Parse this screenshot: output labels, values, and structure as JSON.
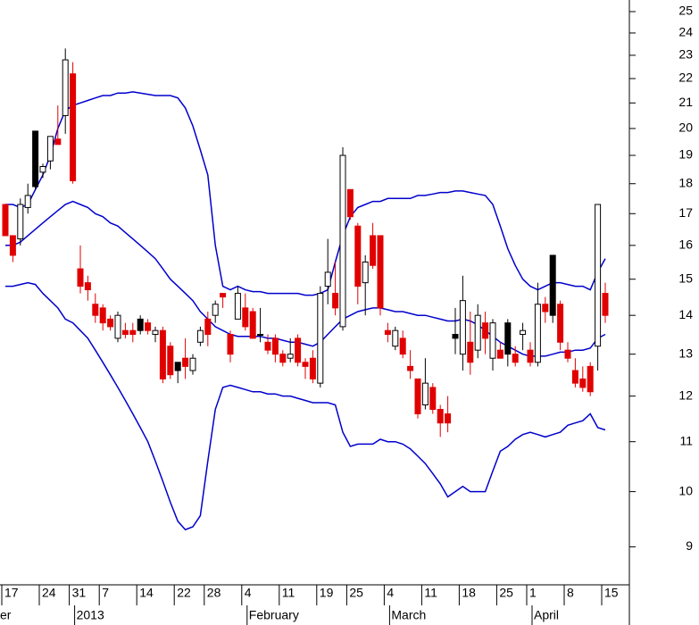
{
  "chart_data": {
    "type": "candlestick",
    "log_scale": true,
    "categories": [
      "17",
      null,
      null,
      null,
      null,
      "24",
      null,
      null,
      null,
      "31",
      null,
      null,
      null,
      "7",
      null,
      null,
      null,
      null,
      "14",
      null,
      null,
      null,
      null,
      "22",
      null,
      null,
      null,
      "28",
      null,
      null,
      null,
      null,
      "4",
      null,
      null,
      null,
      null,
      "11",
      null,
      null,
      null,
      null,
      "19",
      null,
      null,
      null,
      "25",
      null,
      null,
      null,
      null,
      "4",
      null,
      null,
      null,
      null,
      "11",
      null,
      null,
      null,
      null,
      "18",
      null,
      null,
      null,
      null,
      "25",
      null,
      null,
      null,
      "1",
      null,
      null,
      null,
      null,
      "8",
      null,
      null,
      null,
      null,
      "15"
    ],
    "months": [
      "er",
      null,
      null,
      null,
      null,
      null,
      null,
      null,
      null,
      "2013",
      null,
      null,
      null,
      null,
      null,
      null,
      null,
      null,
      null,
      null,
      null,
      null,
      null,
      null,
      null,
      null,
      null,
      null,
      null,
      null,
      null,
      null,
      "February",
      null,
      null,
      null,
      null,
      null,
      null,
      null,
      null,
      null,
      null,
      null,
      null,
      null,
      null,
      null,
      null,
      null,
      null,
      "March",
      null,
      null,
      null,
      null,
      null,
      null,
      null,
      null,
      null,
      null,
      null,
      null,
      null,
      null,
      null,
      null,
      null,
      null,
      "April",
      null,
      null,
      null,
      null,
      null,
      null,
      null,
      null,
      null,
      null
    ],
    "open": [
      17.3,
      16.3,
      16.2,
      17.2,
      17.9,
      18.4,
      18.8,
      19.6,
      20.5,
      22.2,
      15.3,
      14.9,
      14.3,
      14.2,
      13.9,
      13.4,
      13.6,
      13.6,
      13.6,
      13.8,
      13.5,
      13.6,
      13.2,
      12.6,
      12.9,
      12.6,
      13.3,
      13.9,
      14.0,
      14.6,
      13.5,
      13.9,
      14.2,
      14.1,
      13.5,
      13.3,
      13.4,
      13.0,
      12.9,
      13.4,
      12.8,
      12.9,
      12.3,
      14.8,
      14.6,
      13.7,
      17.8,
      16.6,
      14.9,
      16.3,
      16.3,
      13.6,
      13.2,
      13.4,
      12.7,
      12.4,
      11.8,
      12.2,
      11.7,
      11.6,
      13.4,
      13.0,
      13.3,
      13.1,
      13.8,
      12.9,
      13.1,
      13.0,
      13.0,
      13.5,
      13.1,
      12.8,
      14.3,
      14.0,
      14.3,
      13.1,
      12.6,
      12.4,
      12.7,
      13.2,
      14.6
    ],
    "high": [
      17.3,
      16.3,
      17.5,
      18.0,
      19.9,
      18.7,
      19.7,
      20.9,
      23.3,
      22.7,
      16.0,
      15.1,
      14.6,
      14.3,
      14.0,
      14.1,
      13.8,
      13.8,
      14.0,
      13.9,
      13.7,
      13.7,
      13.3,
      12.8,
      13.4,
      13.0,
      13.7,
      14.1,
      14.4,
      14.6,
      13.6,
      14.8,
      14.6,
      14.2,
      14.2,
      13.5,
      13.5,
      13.1,
      13.4,
      13.5,
      12.9,
      13.1,
      14.8,
      16.2,
      15.5,
      19.3,
      17.8,
      16.7,
      15.7,
      16.7,
      16.3,
      13.8,
      13.7,
      13.6,
      13.1,
      12.4,
      12.9,
      12.3,
      11.8,
      12.0,
      14.2,
      15.1,
      14.1,
      14.3,
      14.1,
      13.9,
      13.3,
      13.9,
      13.2,
      13.8,
      13.3,
      14.9,
      14.5,
      15.7,
      14.4,
      13.3,
      12.9,
      12.7,
      12.8,
      17.3,
      14.9
    ],
    "low": [
      16.3,
      15.5,
      16.0,
      17.0,
      17.8,
      18.2,
      18.5,
      19.4,
      19.8,
      18.0,
      14.6,
      14.4,
      13.8,
      13.6,
      13.6,
      13.3,
      13.4,
      13.3,
      13.5,
      13.5,
      13.3,
      12.3,
      12.4,
      12.3,
      12.4,
      12.5,
      13.2,
      13.2,
      13.8,
      14.2,
      12.8,
      13.9,
      13.6,
      13.4,
      13.3,
      13.0,
      12.8,
      12.7,
      12.8,
      12.7,
      12.4,
      12.3,
      12.2,
      14.3,
      14.0,
      13.6,
      16.8,
      14.3,
      14.0,
      15.3,
      14.0,
      13.3,
      13.1,
      12.9,
      12.4,
      11.5,
      11.7,
      11.6,
      11.1,
      11.2,
      13.0,
      12.6,
      12.5,
      12.9,
      13.0,
      12.6,
      12.9,
      12.7,
      12.7,
      13.1,
      12.7,
      12.7,
      13.8,
      13.8,
      13.1,
      12.8,
      12.2,
      12.1,
      12.0,
      12.6,
      13.8
    ],
    "close": [
      16.3,
      15.7,
      17.3,
      17.6,
      19.9,
      18.6,
      19.7,
      19.4,
      22.8,
      18.1,
      14.8,
      14.7,
      14.0,
      13.8,
      13.7,
      14.0,
      13.5,
      13.5,
      13.9,
      13.6,
      13.6,
      12.4,
      12.5,
      12.8,
      12.7,
      12.9,
      13.6,
      13.5,
      14.3,
      14.5,
      13.0,
      14.6,
      13.7,
      13.4,
      13.5,
      13.1,
      13.0,
      12.8,
      13.0,
      12.8,
      12.7,
      12.4,
      14.6,
      15.2,
      14.2,
      19.0,
      16.9,
      14.8,
      15.5,
      15.4,
      14.2,
      13.5,
      13.6,
      13.0,
      12.6,
      11.6,
      12.3,
      11.7,
      11.4,
      11.4,
      13.5,
      14.4,
      12.8,
      14.0,
      13.4,
      13.8,
      12.9,
      13.8,
      12.8,
      13.6,
      12.8,
      14.3,
      14.1,
      15.7,
      13.3,
      12.9,
      12.3,
      12.2,
      12.1,
      17.3,
      14.0
    ],
    "colors": [
      "#e00000",
      "#e00000",
      "#ffffff",
      "#ffffff",
      "#000000",
      "#ffffff",
      "#ffffff",
      "#e00000",
      "#ffffff",
      "#e00000",
      "#e00000",
      "#e00000",
      "#e00000",
      "#e00000",
      "#e00000",
      "#ffffff",
      "#e00000",
      "#e00000",
      "#000000",
      "#e00000",
      "#ffffff",
      "#e00000",
      "#e00000",
      "#000000",
      "#e00000",
      "#ffffff",
      "#ffffff",
      "#e00000",
      "#ffffff",
      "#e00000",
      "#e00000",
      "#ffffff",
      "#e00000",
      "#e00000",
      "#ffffff",
      "#e00000",
      "#e00000",
      "#e00000",
      "#ffffff",
      "#e00000",
      "#e00000",
      "#e00000",
      "#ffffff",
      "#ffffff",
      "#e00000",
      "#ffffff",
      "#e00000",
      "#e00000",
      "#ffffff",
      "#e00000",
      "#e00000",
      "#e00000",
      "#ffffff",
      "#e00000",
      "#e00000",
      "#e00000",
      "#ffffff",
      "#e00000",
      "#e00000",
      "#e00000",
      "#000000",
      "#ffffff",
      "#e00000",
      "#ffffff",
      "#e00000",
      "#ffffff",
      "#e00000",
      "#000000",
      "#e00000",
      "#ffffff",
      "#e00000",
      "#ffffff",
      "#e00000",
      "#000000",
      "#e00000",
      "#e00000",
      "#e00000",
      "#e00000",
      "#e00000",
      "#ffffff",
      "#e00000"
    ],
    "bands": {
      "color": "#0000cc",
      "upper": [
        17.3,
        17.3,
        17.2,
        17.3,
        17.8,
        18.3,
        19.0,
        20.0,
        20.7,
        20.9,
        21.0,
        21.1,
        21.2,
        21.3,
        21.3,
        21.4,
        21.4,
        21.45,
        21.4,
        21.35,
        21.3,
        21.3,
        21.3,
        21.2,
        20.8,
        20.1,
        19.2,
        18.3,
        16.0,
        14.8,
        14.7,
        14.8,
        14.7,
        14.65,
        14.65,
        14.6,
        14.6,
        14.6,
        14.6,
        14.6,
        14.55,
        14.55,
        14.6,
        14.7,
        15.5,
        16.3,
        16.9,
        17.2,
        17.3,
        17.4,
        17.4,
        17.5,
        17.5,
        17.5,
        17.5,
        17.6,
        17.6,
        17.65,
        17.7,
        17.7,
        17.75,
        17.75,
        17.7,
        17.65,
        17.6,
        17.3,
        16.6,
        15.9,
        15.4,
        15.0,
        14.8,
        14.7,
        14.8,
        14.9,
        14.9,
        14.85,
        14.8,
        14.8,
        14.7,
        15.2,
        15.6
      ],
      "middle": [
        16.0,
        16.0,
        16.1,
        16.3,
        16.5,
        16.7,
        16.9,
        17.1,
        17.3,
        17.4,
        17.3,
        17.2,
        17.0,
        16.9,
        16.7,
        16.6,
        16.4,
        16.2,
        16.0,
        15.8,
        15.6,
        15.3,
        15.0,
        14.8,
        14.6,
        14.4,
        14.1,
        13.9,
        13.7,
        13.6,
        13.5,
        13.45,
        13.45,
        13.45,
        13.45,
        13.4,
        13.4,
        13.35,
        13.3,
        13.3,
        13.25,
        13.2,
        13.3,
        13.5,
        13.7,
        13.9,
        14.0,
        14.1,
        14.15,
        14.2,
        14.2,
        14.15,
        14.1,
        14.1,
        14.05,
        14.0,
        14.0,
        13.95,
        13.9,
        13.85,
        13.85,
        13.9,
        13.85,
        13.75,
        13.6,
        13.45,
        13.3,
        13.2,
        13.1,
        13.0,
        12.95,
        12.95,
        12.95,
        13.0,
        13.05,
        13.05,
        13.1,
        13.1,
        13.15,
        13.4,
        13.5
      ],
      "lower": [
        14.8,
        14.8,
        14.85,
        14.9,
        14.85,
        14.6,
        14.4,
        14.2,
        13.9,
        13.8,
        13.6,
        13.4,
        13.1,
        12.8,
        12.5,
        12.2,
        11.9,
        11.6,
        11.3,
        11.0,
        10.6,
        10.2,
        9.8,
        9.45,
        9.3,
        9.35,
        9.55,
        10.6,
        11.7,
        12.2,
        12.25,
        12.2,
        12.15,
        12.1,
        12.1,
        12.05,
        12.05,
        12.0,
        12.0,
        11.95,
        11.9,
        11.85,
        11.85,
        11.85,
        11.8,
        11.2,
        10.9,
        10.95,
        10.95,
        10.95,
        11.05,
        11.0,
        11.0,
        10.95,
        10.85,
        10.7,
        10.55,
        10.35,
        10.15,
        9.9,
        10.0,
        10.1,
        10.0,
        10.0,
        10.0,
        10.4,
        10.8,
        10.9,
        11.05,
        11.15,
        11.2,
        11.15,
        11.1,
        11.15,
        11.2,
        11.35,
        11.4,
        11.45,
        11.6,
        11.3,
        11.25
      ]
    },
    "ylim": [
      8.37,
      25.56
    ],
    "yticks": [
      9,
      10,
      11,
      12,
      13,
      14,
      15,
      16,
      17,
      18,
      19,
      20,
      21,
      22,
      23,
      24,
      25
    ]
  }
}
